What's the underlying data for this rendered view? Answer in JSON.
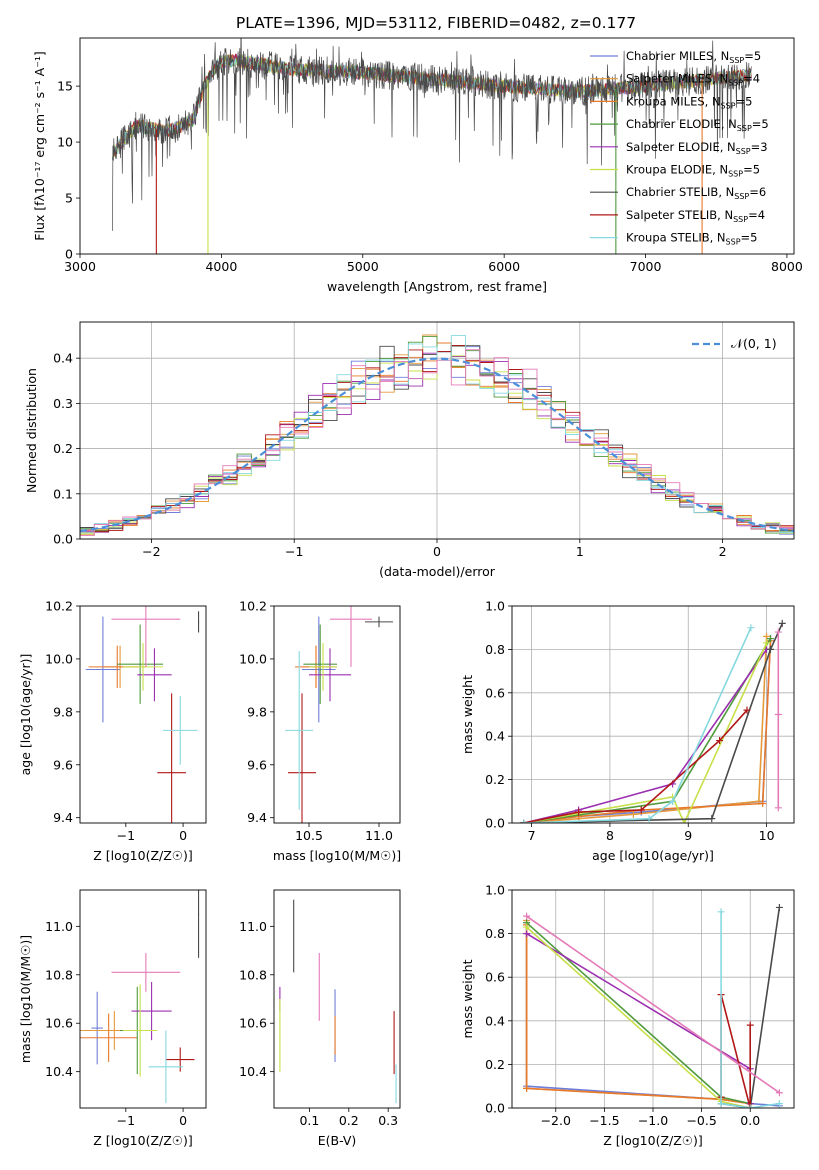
{
  "figure": {
    "title": "PLATE=1396, MJD=53112, FIBERID=0482, z=0.177"
  },
  "colors": {
    "chabrier_miles": "#6f7fd8",
    "salpeter_miles": "#e59a3c",
    "kroupa_miles": "#e8792a",
    "chabrier_elodie": "#4f9a3c",
    "salpeter_elodie": "#9b2fb0",
    "kroupa_elodie": "#c7e04a",
    "chabrier_stelib": "#4a4a4a",
    "salpeter_stelib": "#b01818",
    "kroupa_stelib": "#86d8e0",
    "data": "#777777",
    "gauss": "#4a8fd8",
    "pink": "#e57ab8"
  },
  "chart_data": [
    {
      "id": "spectrum",
      "type": "line",
      "title": "PLATE=1396, MJD=53112, FIBERID=0482, z=0.177",
      "xlabel": "wavelength [Angstrom, rest frame]",
      "ylabel": "Flux [fλ10⁻¹⁷ erg cm⁻² s⁻¹ A⁻¹]",
      "xlim": [
        3000,
        8050
      ],
      "ylim": [
        0,
        19.3
      ],
      "xticks": [
        3000,
        4000,
        5000,
        6000,
        7000,
        8000
      ],
      "yticks": [
        0,
        5,
        10,
        15
      ],
      "data_range": [
        3230,
        7750
      ],
      "anchors": {
        "x": [
          3230,
          3400,
          3600,
          3700,
          3800,
          3880,
          3950,
          4000,
          4100,
          4500,
          5000,
          5500,
          6000,
          6500,
          7000,
          7500,
          7750
        ],
        "y": [
          9.0,
          11.5,
          11.0,
          11.3,
          12.0,
          15.0,
          16.6,
          17.2,
          17.3,
          16.5,
          16.2,
          15.6,
          15.0,
          14.5,
          15.0,
          15.7,
          16.0
        ]
      },
      "drops": [
        {
          "model": "Salpeter STELIB",
          "x": 3540
        },
        {
          "model": "Kroupa ELODIE",
          "x": 3905
        },
        {
          "model": "Chabrier ELODIE",
          "x": 6790
        },
        {
          "model": "Kroupa MILES",
          "x": 7400
        }
      ],
      "legend": {
        "position": "right",
        "entries": [
          {
            "key": "chabrier_miles",
            "label": "Chabrier MILES, N",
            "sub": "SSP",
            "tail": "=5"
          },
          {
            "key": "salpeter_miles",
            "label": "Salpeter MILES, N",
            "sub": "SSP",
            "tail": "=4"
          },
          {
            "key": "kroupa_miles",
            "label": "Kroupa MILES, N",
            "sub": "SSP",
            "tail": "=5"
          },
          {
            "key": "chabrier_elodie",
            "label": "Chabrier ELODIE, N",
            "sub": "SSP",
            "tail": "=5"
          },
          {
            "key": "salpeter_elodie",
            "label": "Salpeter ELODIE, N",
            "sub": "SSP",
            "tail": "=3"
          },
          {
            "key": "kroupa_elodie",
            "label": "Kroupa ELODIE, N",
            "sub": "SSP",
            "tail": "=5"
          },
          {
            "key": "chabrier_stelib",
            "label": "Chabrier STELIB, N",
            "sub": "SSP",
            "tail": "=6"
          },
          {
            "key": "salpeter_stelib",
            "label": "Salpeter STELIB, N",
            "sub": "SSP",
            "tail": "=4"
          },
          {
            "key": "kroupa_stelib",
            "label": "Kroupa STELIB, N",
            "sub": "SSP",
            "tail": "=5"
          }
        ]
      }
    },
    {
      "id": "residuals",
      "type": "histogram",
      "xlabel": "(data-model)/error",
      "ylabel": "Normed distribution",
      "xlim": [
        -2.5,
        2.5
      ],
      "ylim": [
        0,
        0.48
      ],
      "xticks": [
        -2,
        -1,
        0,
        1,
        2
      ],
      "yticks": [
        0.0,
        0.1,
        0.2,
        0.3,
        0.4
      ],
      "bin_width": 0.1,
      "grid": true,
      "legend": {
        "position": "top-right",
        "label": "𝒩(0, 1)"
      }
    },
    {
      "id": "age_vs_Z",
      "type": "errorbar",
      "xlabel": "Z [log10(Z/Z☉)]",
      "ylabel": "age [log10(age/yr)]",
      "xlim": [
        -1.8,
        0.4
      ],
      "ylim": [
        9.38,
        10.2
      ],
      "xticks": [
        -1,
        0
      ],
      "yticks": [
        9.4,
        9.6,
        9.8,
        10.0,
        10.2
      ],
      "points": [
        {
          "key": "chabrier_miles",
          "x": -1.4,
          "y": 9.96,
          "xerr": 0.3,
          "yerr": 0.2
        },
        {
          "key": "salpeter_miles",
          "x": -1.1,
          "y": 9.97,
          "xerr": 0.3,
          "yerr": 0.08
        },
        {
          "key": "kroupa_miles",
          "x": -1.15,
          "y": 9.97,
          "xerr": 0.5,
          "yerr": 0.08
        },
        {
          "key": "chabrier_elodie",
          "x": -0.75,
          "y": 9.98,
          "xerr": 0.4,
          "yerr": 0.15
        },
        {
          "key": "salpeter_elodie",
          "x": -0.5,
          "y": 9.94,
          "xerr": 0.3,
          "yerr": 0.1
        },
        {
          "key": "kroupa_elodie",
          "x": -0.7,
          "y": 9.97,
          "xerr": 0.35,
          "yerr": 0.09
        },
        {
          "key": "chabrier_stelib",
          "x": 0.27,
          "y": 10.14,
          "xerr": 0.01,
          "yerr": 0.04
        },
        {
          "key": "salpeter_stelib",
          "x": -0.2,
          "y": 9.57,
          "xerr": 0.25,
          "yerr": 0.3
        },
        {
          "key": "kroupa_stelib",
          "x": -0.05,
          "y": 9.73,
          "xerr": 0.3,
          "yerr": 0.13
        },
        {
          "key": "pink",
          "x": -0.65,
          "y": 10.15,
          "xerr": 0.6,
          "yerr": 0.18
        }
      ]
    },
    {
      "id": "age_vs_mass",
      "type": "errorbar",
      "xlabel": "mass [log10(M/M☉)]",
      "ylabel": "",
      "xlim": [
        10.25,
        11.15
      ],
      "ylim": [
        9.38,
        10.2
      ],
      "xticks": [
        10.5,
        11.0
      ],
      "yticks": [
        9.4,
        9.6,
        9.8,
        10.0,
        10.2
      ],
      "points": [
        {
          "key": "chabrier_miles",
          "x": 10.57,
          "y": 9.96,
          "xerr": 0.12,
          "yerr": 0.2
        },
        {
          "key": "salpeter_miles",
          "x": 10.55,
          "y": 9.97,
          "xerr": 0.1,
          "yerr": 0.08
        },
        {
          "key": "kroupa_miles",
          "x": 10.55,
          "y": 9.97,
          "xerr": 0.15,
          "yerr": 0.08
        },
        {
          "key": "chabrier_elodie",
          "x": 10.58,
          "y": 9.98,
          "xerr": 0.12,
          "yerr": 0.15
        },
        {
          "key": "salpeter_elodie",
          "x": 10.65,
          "y": 9.94,
          "xerr": 0.15,
          "yerr": 0.1
        },
        {
          "key": "kroupa_elodie",
          "x": 10.6,
          "y": 9.97,
          "xerr": 0.1,
          "yerr": 0.09
        },
        {
          "key": "chabrier_stelib",
          "x": 11.0,
          "y": 10.14,
          "xerr": 0.1,
          "yerr": 0.02
        },
        {
          "key": "salpeter_stelib",
          "x": 10.45,
          "y": 9.57,
          "xerr": 0.1,
          "yerr": 0.3
        },
        {
          "key": "kroupa_stelib",
          "x": 10.43,
          "y": 9.73,
          "xerr": 0.1,
          "yerr": 0.3
        },
        {
          "key": "pink",
          "x": 10.8,
          "y": 10.15,
          "xerr": 0.15,
          "yerr": 0.18
        }
      ]
    },
    {
      "id": "weight_vs_age",
      "type": "line",
      "xlabel": "age [log10(age/yr)]",
      "ylabel": "mass weight",
      "xlim": [
        6.75,
        10.35
      ],
      "ylim": [
        0,
        1.0
      ],
      "xticks": [
        7,
        8,
        9,
        10
      ],
      "yticks": [
        0.0,
        0.2,
        0.4,
        0.6,
        0.8,
        1.0
      ],
      "grid": true,
      "series": [
        {
          "key": "chabrier_miles",
          "x": [
            6.9,
            7.6,
            8.4,
            9.95,
            10.05
          ],
          "y": [
            0.0,
            0.03,
            0.05,
            0.1,
            0.85
          ]
        },
        {
          "key": "salpeter_miles",
          "x": [
            6.9,
            8.3,
            9.9,
            10.0
          ],
          "y": [
            0.0,
            0.04,
            0.1,
            0.86
          ]
        },
        {
          "key": "kroupa_miles",
          "x": [
            6.9,
            7.6,
            8.4,
            9.95,
            10.05
          ],
          "y": [
            0.0,
            0.03,
            0.06,
            0.09,
            0.84
          ]
        },
        {
          "key": "chabrier_elodie",
          "x": [
            6.9,
            8.8,
            10.05
          ],
          "y": [
            0.0,
            0.1,
            0.85
          ]
        },
        {
          "key": "salpeter_elodie",
          "x": [
            6.9,
            7.6,
            8.8,
            10.0
          ],
          "y": [
            0.0,
            0.06,
            0.18,
            0.8
          ]
        },
        {
          "key": "kroupa_elodie",
          "x": [
            6.9,
            8.8,
            8.95,
            10.0
          ],
          "y": [
            0.0,
            0.12,
            0.0,
            0.83
          ]
        },
        {
          "key": "chabrier_stelib",
          "x": [
            6.9,
            9.3,
            10.05,
            10.2
          ],
          "y": [
            0.0,
            0.02,
            0.8,
            0.92
          ]
        },
        {
          "key": "salpeter_stelib",
          "x": [
            6.9,
            7.6,
            8.4,
            9.4,
            9.75
          ],
          "y": [
            0.0,
            0.05,
            0.06,
            0.38,
            0.52
          ]
        },
        {
          "key": "kroupa_stelib",
          "x": [
            6.9,
            8.5,
            8.8,
            9.8
          ],
          "y": [
            0.0,
            0.02,
            0.1,
            0.9
          ]
        },
        {
          "key": "pink",
          "x": [
            10.15,
            10.15,
            10.15
          ],
          "y": [
            0.07,
            0.5,
            0.88
          ]
        }
      ]
    },
    {
      "id": "mass_vs_Z",
      "type": "errorbar",
      "xlabel": "Z [log10(Z/Z☉)]",
      "ylabel": "mass [log10(M/M☉)]",
      "xlim": [
        -1.8,
        0.4
      ],
      "ylim": [
        10.25,
        11.15
      ],
      "xticks": [
        -1,
        0
      ],
      "yticks": [
        10.4,
        10.6,
        10.8,
        11.0
      ],
      "points": [
        {
          "key": "chabrier_miles",
          "x": -1.5,
          "y": 10.58,
          "xerr": 0.1,
          "yerr": 0.15
        },
        {
          "key": "salpeter_miles",
          "x": -1.2,
          "y": 10.57,
          "xerr": 0.6,
          "yerr": 0.08
        },
        {
          "key": "kroupa_miles",
          "x": -1.3,
          "y": 10.54,
          "xerr": 0.5,
          "yerr": 0.1
        },
        {
          "key": "chabrier_elodie",
          "x": -0.8,
          "y": 10.57,
          "xerr": 0.3,
          "yerr": 0.18
        },
        {
          "key": "salpeter_elodie",
          "x": -0.55,
          "y": 10.65,
          "xerr": 0.35,
          "yerr": 0.12
        },
        {
          "key": "kroupa_elodie",
          "x": -0.75,
          "y": 10.57,
          "xerr": 0.3,
          "yerr": 0.19
        },
        {
          "key": "chabrier_stelib",
          "x": 0.27,
          "y": 11.05,
          "xerr": 0.01,
          "yerr": 0.18
        },
        {
          "key": "salpeter_stelib",
          "x": -0.05,
          "y": 10.45,
          "xerr": 0.25,
          "yerr": 0.05
        },
        {
          "key": "kroupa_stelib",
          "x": -0.3,
          "y": 10.42,
          "xerr": 0.3,
          "yerr": 0.15
        },
        {
          "key": "pink",
          "x": -0.65,
          "y": 10.81,
          "xerr": 0.6,
          "yerr": 0.08
        }
      ]
    },
    {
      "id": "mass_vs_ebv",
      "type": "errorbar",
      "xlabel": "E(B-V)",
      "ylabel": "",
      "xlim": [
        0.01,
        0.33
      ],
      "ylim": [
        10.25,
        11.15
      ],
      "xticks": [
        0.1,
        0.2,
        0.3
      ],
      "yticks": [
        10.4,
        10.6,
        10.8,
        11.0
      ],
      "points": [
        {
          "key": "chabrier_miles",
          "x": 0.165,
          "y": 10.59,
          "xerr": 0,
          "yerr": 0.15
        },
        {
          "key": "kroupa_miles",
          "x": 0.165,
          "y": 10.55,
          "xerr": 0,
          "yerr": 0.08
        },
        {
          "key": "salpeter_elodie",
          "x": 0.025,
          "y": 10.7,
          "xerr": 0,
          "yerr": 0.05
        },
        {
          "key": "kroupa_elodie",
          "x": 0.025,
          "y": 10.55,
          "xerr": 0,
          "yerr": 0.15
        },
        {
          "key": "chabrier_stelib",
          "x": 0.06,
          "y": 10.96,
          "xerr": 0,
          "yerr": 0.15
        },
        {
          "key": "salpeter_stelib",
          "x": 0.315,
          "y": 10.52,
          "xerr": 0,
          "yerr": 0.13
        },
        {
          "key": "kroupa_stelib",
          "x": 0.32,
          "y": 10.35,
          "xerr": 0,
          "yerr": 0.08
        },
        {
          "key": "pink",
          "x": 0.125,
          "y": 10.75,
          "xerr": 0,
          "yerr": 0.14
        }
      ]
    },
    {
      "id": "weight_vs_Z",
      "type": "line",
      "xlabel": "Z [log10(Z/Z☉)]",
      "ylabel": "mass weight",
      "xlim": [
        -2.45,
        0.45
      ],
      "ylim": [
        0,
        1.0
      ],
      "xticks": [
        -2.0,
        -1.5,
        -1.0,
        -0.5,
        0.0
      ],
      "yticks": [
        0.0,
        0.2,
        0.4,
        0.6,
        0.8,
        1.0
      ],
      "grid": true,
      "series": [
        {
          "key": "chabrier_miles",
          "x": [
            -2.3,
            -2.3,
            -0.3,
            0.0,
            0.3
          ],
          "y": [
            0.85,
            0.1,
            0.04,
            0.02,
            0.01
          ]
        },
        {
          "key": "salpeter_miles",
          "x": [
            -2.3,
            -2.3,
            -0.3,
            0.0
          ],
          "y": [
            0.86,
            0.09,
            0.04,
            0.02
          ]
        },
        {
          "key": "kroupa_miles",
          "x": [
            -2.3,
            -2.3,
            -0.3,
            0.0
          ],
          "y": [
            0.84,
            0.09,
            0.04,
            0.02
          ]
        },
        {
          "key": "chabrier_elodie",
          "x": [
            -2.3,
            -0.3,
            0.0
          ],
          "y": [
            0.85,
            0.05,
            0.02
          ]
        },
        {
          "key": "salpeter_elodie",
          "x": [
            -2.3,
            0.0,
            0.0
          ],
          "y": [
            0.8,
            0.18,
            0.02
          ]
        },
        {
          "key": "kroupa_elodie",
          "x": [
            -2.3,
            -0.3,
            0.0
          ],
          "y": [
            0.83,
            0.03,
            0.0
          ]
        },
        {
          "key": "chabrier_stelib",
          "x": [
            -0.3,
            0.0,
            0.3
          ],
          "y": [
            0.02,
            0.0,
            0.92
          ]
        },
        {
          "key": "salpeter_stelib",
          "x": [
            -0.3,
            -0.3,
            0.0,
            0.0
          ],
          "y": [
            0.05,
            0.52,
            0.0,
            0.38
          ]
        },
        {
          "key": "kroupa_stelib",
          "x": [
            -0.3,
            -0.3,
            0.0,
            0.3
          ],
          "y": [
            0.9,
            0.02,
            0.0,
            0.02
          ]
        },
        {
          "key": "pink",
          "x": [
            -2.3,
            0.3
          ],
          "y": [
            0.88,
            0.07
          ]
        }
      ]
    }
  ]
}
